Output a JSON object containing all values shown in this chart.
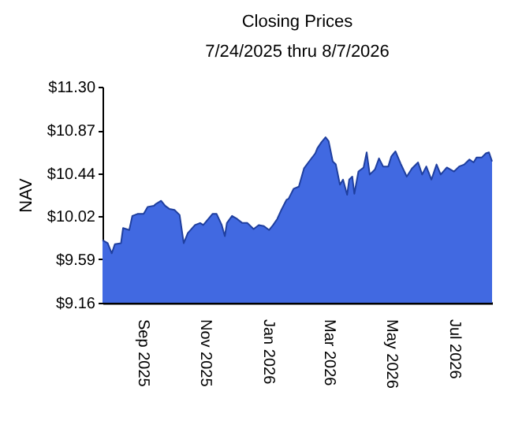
{
  "chart_data": {
    "type": "area",
    "title": "Closing Prices",
    "subtitle": "7/24/2025 thru 8/7/2026",
    "ylabel": "NAV",
    "x": [
      "2025-07-24",
      "2025-07-29",
      "2025-08-02",
      "2025-08-05",
      "2025-08-11",
      "2025-08-13",
      "2025-08-19",
      "2025-08-22",
      "2025-08-27",
      "2025-09-02",
      "2025-09-06",
      "2025-09-12",
      "2025-09-14",
      "2025-09-19",
      "2025-09-23",
      "2025-09-27",
      "2025-10-02",
      "2025-10-07",
      "2025-10-11",
      "2025-10-15",
      "2025-10-22",
      "2025-10-27",
      "2025-10-30",
      "2025-11-04",
      "2025-11-08",
      "2025-11-12",
      "2025-11-17",
      "2025-11-20",
      "2025-11-22",
      "2025-11-27",
      "2025-12-02",
      "2025-12-07",
      "2025-12-12",
      "2025-12-18",
      "2025-12-23",
      "2025-12-28",
      "2026-01-02",
      "2026-01-06",
      "2026-01-10",
      "2026-01-14",
      "2026-01-19",
      "2026-01-21",
      "2026-01-26",
      "2026-01-31",
      "2026-02-05",
      "2026-02-10",
      "2026-02-16",
      "2026-02-18",
      "2026-02-22",
      "2026-02-26",
      "2026-03-01",
      "2026-03-05",
      "2026-03-08",
      "2026-03-12",
      "2026-03-15",
      "2026-03-19",
      "2026-03-21",
      "2026-03-24",
      "2026-03-26",
      "2026-03-30",
      "2026-04-04",
      "2026-04-07",
      "2026-04-10",
      "2026-04-15",
      "2026-04-19",
      "2026-04-23",
      "2026-04-28",
      "2026-05-01",
      "2026-05-05",
      "2026-05-10",
      "2026-05-16",
      "2026-05-21",
      "2026-05-27",
      "2026-05-31",
      "2026-06-04",
      "2026-06-09",
      "2026-06-14",
      "2026-06-18",
      "2026-06-24",
      "2026-07-01",
      "2026-07-06",
      "2026-07-11",
      "2026-07-16",
      "2026-07-20",
      "2026-07-23",
      "2026-07-28",
      "2026-08-01",
      "2026-08-04",
      "2026-08-07"
    ],
    "series": [
      {
        "color": "#4169e1",
        "values": [
          9.78,
          9.75,
          9.65,
          9.74,
          9.75,
          9.9,
          9.88,
          10.02,
          10.04,
          10.04,
          10.11,
          10.12,
          10.14,
          10.17,
          10.12,
          10.09,
          10.08,
          10.03,
          9.75,
          9.85,
          9.93,
          9.95,
          9.93,
          9.99,
          10.04,
          10.04,
          9.93,
          9.82,
          9.95,
          10.02,
          9.99,
          9.95,
          9.95,
          9.89,
          9.93,
          9.92,
          9.88,
          9.93,
          9.99,
          10.08,
          10.18,
          10.19,
          10.29,
          10.31,
          10.49,
          10.56,
          10.64,
          10.69,
          10.75,
          10.8,
          10.76,
          10.56,
          10.53,
          10.33,
          10.38,
          10.23,
          10.38,
          10.41,
          10.24,
          10.46,
          10.5,
          10.65,
          10.43,
          10.48,
          10.59,
          10.51,
          10.51,
          10.61,
          10.66,
          10.54,
          10.41,
          10.49,
          10.55,
          10.43,
          10.51,
          10.38,
          10.53,
          10.43,
          10.5,
          10.46,
          10.51,
          10.53,
          10.58,
          10.55,
          10.6,
          10.6,
          10.64,
          10.65,
          10.56
        ]
      }
    ],
    "xlim": [
      "2025-07-24",
      "2026-08-07"
    ],
    "xticks": [
      {
        "value": "2025-09-01",
        "label": "Sep  2025"
      },
      {
        "value": "2025-11-01",
        "label": "Nov  2025"
      },
      {
        "value": "2026-01-01",
        "label": "Jan  2026"
      },
      {
        "value": "2026-03-01",
        "label": "Mar  2026"
      },
      {
        "value": "2026-05-01",
        "label": "May  2026"
      },
      {
        "value": "2026-07-01",
        "label": "Jul  2026"
      }
    ],
    "ylim": [
      9.16,
      11.3
    ],
    "yticks": [
      {
        "value": 9.16,
        "label": "$9.16"
      },
      {
        "value": 9.59,
        "label": "$9.59"
      },
      {
        "value": 10.02,
        "label": "$10.02"
      },
      {
        "value": 10.44,
        "label": "$10.44"
      },
      {
        "value": 10.87,
        "label": "$10.87"
      },
      {
        "value": 11.3,
        "label": "$11.30"
      }
    ],
    "grid": false
  }
}
